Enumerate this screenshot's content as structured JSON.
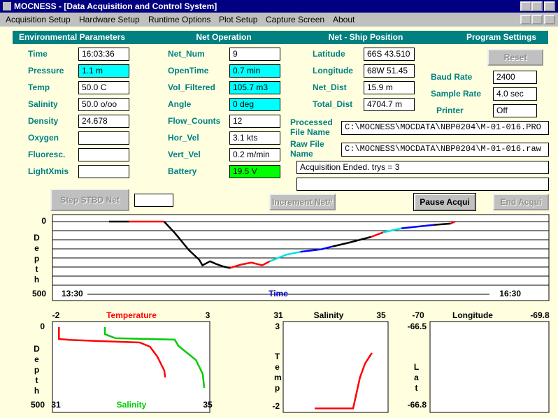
{
  "window": {
    "title": "MOCNESS - [Data Acquisition and Control System]"
  },
  "menu": [
    "Acquisition Setup",
    "Hardware Setup",
    "Runtime Options",
    "Plot Setup",
    "Capture Screen",
    "About"
  ],
  "sections": [
    "Environmental Parameters",
    "Net Operation",
    "Net - Ship Position",
    "Program Settings"
  ],
  "environmental": [
    {
      "label": "Time",
      "value": "16:03:36"
    },
    {
      "label": "Pressure",
      "value": "1.1 m",
      "highlight": "#00ffff"
    },
    {
      "label": "Temp",
      "value": "50.0 C"
    },
    {
      "label": "Salinity",
      "value": "50.0 o/oo"
    },
    {
      "label": "Density",
      "value": "24.678"
    },
    {
      "label": "Oxygen"
    },
    {
      "label": "Fluoresc."
    },
    {
      "label": "LightXmis"
    }
  ],
  "net": [
    {
      "label": "Net_Num",
      "value": "9"
    },
    {
      "label": "OpenTime",
      "value": "0.7 min",
      "highlight": "#00ffff"
    },
    {
      "label": "Vol_Filtered",
      "value": "105.7 m3",
      "highlight": "#00ffff"
    },
    {
      "label": "Angle",
      "value": "0 deg",
      "highlight": "#00ffff"
    },
    {
      "label": "Flow_Counts",
      "value": "12"
    },
    {
      "label": "Hor_Vel",
      "value": "3.1 kts"
    },
    {
      "label": "Vert_Vel",
      "value": "0.2 m/min"
    },
    {
      "label": "Battery",
      "value": "19.5 V",
      "highlight": "#00ff00"
    }
  ],
  "position": [
    {
      "label": "Latitude",
      "value": "66S 43.510"
    },
    {
      "label": "Longitude",
      "value": "68W 51.45"
    },
    {
      "label": "Net_Dist",
      "value": "15.9 m"
    },
    {
      "label": "Total_Dist",
      "value": "4704.7 m"
    }
  ],
  "settings": {
    "reset": "Reset",
    "fields": [
      {
        "label": "Baud Rate",
        "value": "2400"
      },
      {
        "label": "Sample Rate",
        "value": "4.0 sec"
      },
      {
        "label": "Printer",
        "value": "Off"
      }
    ]
  },
  "files": [
    {
      "label": "Processed File Name",
      "value": "C:\\MOCNESS\\MOCDATA\\NBP0204\\M-01-016.PRO"
    },
    {
      "label": "Raw File Name",
      "value": "C:\\MOCNESS\\MOCDATA\\NBP0204\\M-01-016.raw"
    }
  ],
  "message": "Acquisition Ended. trys = 3",
  "buttons": [
    {
      "label": "Step STBD Net",
      "enabled": false
    },
    {
      "label": "Increment Net#",
      "enabled": false
    },
    {
      "label": "Pause Acqui",
      "enabled": true
    },
    {
      "label": "End Acqui",
      "enabled": false
    }
  ],
  "plots": {
    "depth": {
      "ylabel": "Depth",
      "xlabel": "Time",
      "xlim": [
        13.5,
        16.5
      ],
      "xticks": [
        {
          "value": 13.5,
          "label": "13:30"
        },
        {
          "value": 16.5,
          "label": "16:30"
        }
      ],
      "ylim": [
        0,
        500
      ],
      "yticks": [
        0,
        500
      ],
      "ygrid": [
        0,
        62.5,
        125,
        187.5,
        250,
        312.5,
        375,
        437.5,
        500
      ],
      "series": [
        {
          "color": "#000000",
          "x": [
            13.81,
            13.94
          ],
          "y": [
            0,
            0
          ]
        },
        {
          "color": "#ff0000",
          "x": [
            13.94,
            14.17
          ],
          "y": [
            0,
            0
          ]
        },
        {
          "color": "#000000",
          "x": [
            14.17,
            14.24,
            14.33,
            14.4,
            14.42,
            14.47,
            14.51,
            14.56,
            14.6
          ],
          "y": [
            0,
            79,
            194,
            264,
            301,
            273,
            292,
            310,
            319
          ]
        },
        {
          "color": "#ff0000",
          "x": [
            14.6,
            14.67,
            14.74,
            14.81,
            14.86
          ],
          "y": [
            319,
            296,
            282,
            301,
            273
          ]
        },
        {
          "color": "#00e0e0",
          "x": [
            14.86,
            14.97,
            15.06
          ],
          "y": [
            273,
            227,
            208
          ]
        },
        {
          "color": "#0000ff",
          "x": [
            15.06,
            15.2,
            15.27
          ],
          "y": [
            208,
            190,
            171
          ]
        },
        {
          "color": "#000000",
          "x": [
            15.27,
            15.38,
            15.52
          ],
          "y": [
            171,
            144,
            106
          ]
        },
        {
          "color": "#ff0000",
          "x": [
            15.52,
            15.6
          ],
          "y": [
            106,
            74
          ]
        },
        {
          "color": "#00e0e0",
          "x": [
            15.6,
            15.72
          ],
          "y": [
            74,
            46
          ]
        },
        {
          "color": "#0000ff",
          "x": [
            15.72,
            15.93
          ],
          "y": [
            46,
            23
          ]
        },
        {
          "color": "#000000",
          "x": [
            15.93,
            16.04
          ],
          "y": [
            23,
            14
          ]
        },
        {
          "color": "#ff0000",
          "x": [
            16.04,
            16.07
          ],
          "y": [
            14,
            0
          ]
        }
      ]
    },
    "profile": {
      "ylabel": "Depth",
      "ylim": [
        0,
        500
      ],
      "yticks": [
        0,
        500
      ],
      "top": {
        "label": "Temperature",
        "color": "#ff0000",
        "xlim": [
          -2,
          3
        ],
        "xticks": [
          -2,
          3
        ]
      },
      "bottom": {
        "label": "Salinity",
        "color": "#00cc00",
        "xlim": [
          31,
          35
        ],
        "xticks": [
          31,
          35
        ]
      },
      "temperature": {
        "x": [
          -1.9,
          -1.9,
          -1.5,
          0.76,
          1.1,
          1.34,
          1.5,
          1.57,
          1.6
        ],
        "y": [
          0,
          76,
          82,
          98,
          125,
          188,
          250,
          277,
          321
        ]
      },
      "salinity": {
        "x": [
          32.29,
          32.29,
          32.57,
          34.13,
          34.23,
          34.69,
          34.87,
          34.91
        ],
        "y": [
          0,
          45,
          71,
          80,
          120,
          210,
          299,
          388
        ]
      }
    },
    "ts": {
      "title": "Salinity",
      "ylabel": "Temp",
      "xlim": [
        31,
        35
      ],
      "xticks": [
        31,
        35
      ],
      "ylim": [
        3,
        -2
      ],
      "yticks": [
        3,
        -2
      ],
      "color": "#ff0000",
      "x": [
        32.24,
        33.76,
        34.03,
        34.23,
        34.5
      ],
      "y": [
        -2.1,
        -2.1,
        -0.16,
        0.72,
        1.38
      ]
    },
    "latlon": {
      "title": "Longitude",
      "ylabel": "Lat",
      "xlim": [
        -70,
        -69.8
      ],
      "xticks": [
        -70,
        -69.8
      ],
      "ylim": [
        -66.5,
        -66.8
      ],
      "yticks": [
        -66.5,
        -66.8
      ]
    }
  }
}
